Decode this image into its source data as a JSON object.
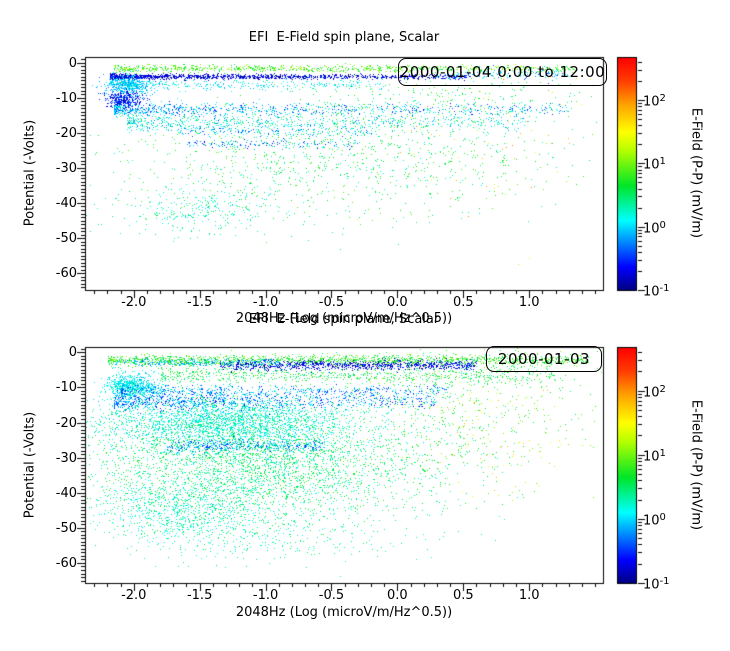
{
  "chart_data": [
    {
      "type": "scatter",
      "title": "EFI  E-Field spin plane, Scalar",
      "xlabel": "2048Hz (Log (microV/m/Hz^0.5))",
      "ylabel": "Potential (-Volts)",
      "legend": "2000-01-04 0:00 to 12:00",
      "xlim": [
        -2.37,
        1.56
      ],
      "ylim": [
        -64.8,
        1.6
      ],
      "xticks": {
        "values": [
          -2.0,
          -1.5,
          -1.0,
          -0.5,
          0.0,
          0.5,
          1.0
        ],
        "labels": [
          "-2.0",
          "-1.5",
          "-1.0",
          "-0.5",
          "0.0",
          "0.5",
          "1.0"
        ],
        "minor_step": 0.1
      },
      "yticks": {
        "values": [
          0,
          -10,
          -20,
          -30,
          -40,
          -50,
          -60
        ],
        "labels": [
          "0",
          "-10",
          "-20",
          "-30",
          "-40",
          "-50",
          "-60"
        ],
        "minor_step": 1
      },
      "colorbar": {
        "label": "E-Field (P-P) (mV/m)",
        "scale": "log",
        "range_log10": [
          -1,
          2.68
        ],
        "tick_exponents": [
          "2",
          "1",
          "0",
          "-1"
        ],
        "colormap_stops": [
          [
            0.0,
            "#000082"
          ],
          [
            0.1,
            "#0000ff"
          ],
          [
            0.3,
            "#00ffff"
          ],
          [
            0.45,
            "#00e628"
          ],
          [
            0.6,
            "#b4ff00"
          ],
          [
            0.68,
            "#ffff00"
          ],
          [
            0.8,
            "#ffa000"
          ],
          [
            0.9,
            "#ff3c00"
          ],
          [
            1.0,
            "#ff0000"
          ]
        ]
      },
      "note": "point cloud approximated by density clusters; lv = log10 of E-field value (color)",
      "point_clusters": [
        {
          "kind": "band",
          "x0": -2.15,
          "x1": 1.35,
          "y": -1.6,
          "ysig": 0.5,
          "n": 800,
          "lv0": 0.5,
          "lv1": 1.2,
          "p": 1.2
        },
        {
          "kind": "band",
          "x0": -2.18,
          "x1": 0.55,
          "y": -3.9,
          "ysig": 0.35,
          "n": 1400,
          "lv0": -1.0,
          "lv1": -0.45,
          "p": 1.8
        },
        {
          "kind": "band",
          "x0": 0.3,
          "x1": 1.3,
          "y": -3.2,
          "ysig": 0.8,
          "n": 150,
          "lv0": -0.5,
          "lv1": 0.3,
          "p": 1
        },
        {
          "kind": "cloud",
          "xc": -2.05,
          "xsig": 0.08,
          "yc": -6.5,
          "ysig": 1.5,
          "n": 500,
          "lv0": -0.3,
          "lv1": 0.2
        },
        {
          "kind": "band",
          "x0": -2.1,
          "x1": -0.1,
          "y": -6.2,
          "ysig": 0.8,
          "n": 300,
          "lv0": -0.2,
          "lv1": 0.3,
          "p": 1.5
        },
        {
          "kind": "cloud",
          "xc": -2.08,
          "xsig": 0.07,
          "yc": -10.5,
          "ysig": 1.2,
          "n": 300,
          "lv0": -0.85,
          "lv1": -0.35
        },
        {
          "kind": "band",
          "x0": -2.15,
          "x1": 1.3,
          "y": -13.2,
          "ysig": 0.9,
          "n": 900,
          "lv0": -0.6,
          "lv1": 0.3,
          "p": 2.0
        },
        {
          "kind": "band",
          "x0": -2.05,
          "x1": 1.0,
          "y": -16.8,
          "ysig": 1.3,
          "n": 700,
          "lv0": -0.3,
          "lv1": 0.55,
          "p": 1.7
        },
        {
          "kind": "band",
          "x0": -1.7,
          "x1": -0.2,
          "y": -19.5,
          "ysig": 0.8,
          "n": 180,
          "lv0": -0.5,
          "lv1": 0.2,
          "p": 1
        },
        {
          "kind": "band",
          "x0": -1.6,
          "x1": -0.3,
          "y": -23.2,
          "ysig": 0.6,
          "n": 140,
          "lv0": -0.7,
          "lv1": 0.1,
          "p": 1
        },
        {
          "kind": "cloud",
          "xc": -0.5,
          "xsig": 0.85,
          "yc": -27,
          "ysig": 8,
          "n": 1100,
          "lv0": 0.15,
          "lv1": 0.95
        },
        {
          "kind": "cloud",
          "xc": -1.5,
          "xsig": 0.35,
          "yc": -42,
          "ysig": 3.5,
          "n": 300,
          "lv0": -0.05,
          "lv1": 0.6
        },
        {
          "kind": "cloud",
          "xc": 0.7,
          "xsig": 0.45,
          "yc": -18,
          "ysig": 12,
          "n": 80,
          "lv0": 1.1,
          "lv1": 2.1
        },
        {
          "kind": "cloud",
          "xc": 0.3,
          "xsig": 0.7,
          "yc": -10,
          "ysig": 4,
          "n": 250,
          "lv0": 0.3,
          "lv1": 0.9
        }
      ]
    },
    {
      "type": "scatter",
      "title": "EFI  E-Field spin plane, Scalar",
      "xlabel": "2048Hz (Log (microV/m/Hz^0.5))",
      "ylabel": "Potential (-Volts)",
      "legend": "2000-01-03",
      "xlim": [
        -2.37,
        1.56
      ],
      "ylim": [
        -65.7,
        1.5
      ],
      "xticks": {
        "values": [
          -2.0,
          -1.5,
          -1.0,
          -0.5,
          0.0,
          0.5,
          1.0
        ],
        "labels": [
          "-2.0",
          "-1.5",
          "-1.0",
          "-0.5",
          "0.0",
          "0.5",
          "1.0"
        ],
        "minor_step": 0.1
      },
      "yticks": {
        "values": [
          0,
          -10,
          -20,
          -30,
          -40,
          -50,
          -60
        ],
        "labels": [
          "0",
          "-10",
          "-20",
          "-30",
          "-40",
          "-50",
          "-60"
        ],
        "minor_step": 1
      },
      "colorbar": {
        "label": "E-Field (P-P) (mV/m)",
        "scale": "log",
        "range_log10": [
          -1,
          2.68
        ],
        "tick_exponents": [
          "2",
          "1",
          "0",
          "-1"
        ],
        "colormap_stops": [
          [
            0.0,
            "#000082"
          ],
          [
            0.1,
            "#0000ff"
          ],
          [
            0.3,
            "#00ffff"
          ],
          [
            0.45,
            "#00e628"
          ],
          [
            0.6,
            "#b4ff00"
          ],
          [
            0.68,
            "#ffff00"
          ],
          [
            0.8,
            "#ffa000"
          ],
          [
            0.9,
            "#ff3c00"
          ],
          [
            1.0,
            "#ff0000"
          ]
        ]
      },
      "note": "point cloud approximated by density clusters; lv = log10 of E-field value (color)",
      "point_clusters": [
        {
          "kind": "band",
          "x0": -2.2,
          "x1": 1.45,
          "y": -2.2,
          "ysig": 0.8,
          "n": 1600,
          "lv0": 0.4,
          "lv1": 1.1,
          "p": 1.1
        },
        {
          "kind": "band",
          "x0": -1.35,
          "x1": 0.6,
          "y": -3.6,
          "ysig": 0.7,
          "n": 900,
          "lv0": -1.0,
          "lv1": -0.4,
          "p": 1
        },
        {
          "kind": "band",
          "x0": -2.15,
          "x1": -0.9,
          "y": -2.8,
          "ysig": 0.5,
          "n": 250,
          "lv0": -0.4,
          "lv1": 0.2,
          "p": 1
        },
        {
          "kind": "band",
          "x0": -1.8,
          "x1": 1.2,
          "y": -6.5,
          "ysig": 1.2,
          "n": 700,
          "lv0": 0.3,
          "lv1": 0.9,
          "p": 1.2
        },
        {
          "kind": "cloud",
          "xc": -2.02,
          "xsig": 0.1,
          "yc": -9.5,
          "ysig": 1.8,
          "n": 700,
          "lv0": -0.15,
          "lv1": 0.35
        },
        {
          "kind": "band",
          "x0": -2.1,
          "x1": 0.4,
          "y": -10.8,
          "ysig": 0.8,
          "n": 500,
          "lv0": -0.6,
          "lv1": 0.2,
          "p": 1.4
        },
        {
          "kind": "band",
          "x0": -2.15,
          "x1": 0.3,
          "y": -13.8,
          "ysig": 1.3,
          "n": 900,
          "lv0": -0.7,
          "lv1": 0.1,
          "p": 1.5
        },
        {
          "kind": "cloud",
          "xc": -1.3,
          "xsig": 0.5,
          "yc": -20,
          "ysig": 4,
          "n": 2500,
          "lv0": -0.1,
          "lv1": 0.5
        },
        {
          "kind": "band",
          "x0": -1.75,
          "x1": -0.55,
          "y": -26.5,
          "ysig": 0.9,
          "n": 350,
          "lv0": -0.55,
          "lv1": 0.0,
          "p": 1
        },
        {
          "kind": "cloud",
          "xc": -1.05,
          "xsig": 0.7,
          "yc": -32,
          "ysig": 8,
          "n": 3200,
          "lv0": 0.15,
          "lv1": 0.8
        },
        {
          "kind": "cloud",
          "xc": -1.6,
          "xsig": 0.35,
          "yc": -45,
          "ysig": 5,
          "n": 900,
          "lv0": 0.0,
          "lv1": 0.55
        },
        {
          "kind": "cloud",
          "xc": 0.55,
          "xsig": 0.5,
          "yc": -15,
          "ysig": 10,
          "n": 500,
          "lv0": 0.4,
          "lv1": 1.1
        },
        {
          "kind": "cloud",
          "xc": 0.75,
          "xsig": 0.35,
          "yc": -22,
          "ysig": 9,
          "n": 90,
          "lv0": 1.1,
          "lv1": 1.9
        },
        {
          "kind": "cloud",
          "xc": -0.9,
          "xsig": 0.6,
          "yc": -53,
          "ysig": 4,
          "n": 250,
          "lv0": 0.1,
          "lv1": 0.6
        }
      ]
    }
  ]
}
